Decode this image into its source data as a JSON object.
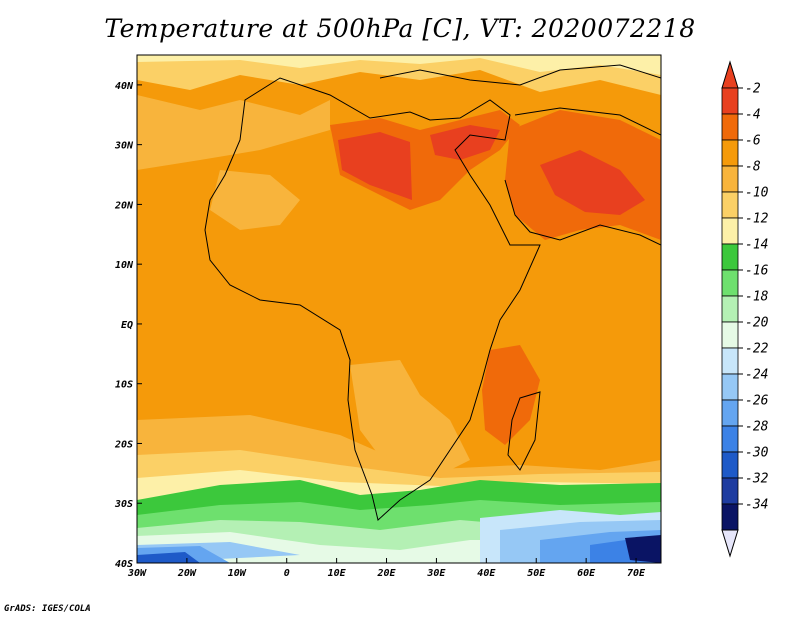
{
  "title": "Temperature at 500hPa [C], VT: 2020072218",
  "credit": "GrADS: IGES/COLA",
  "map": {
    "lon_ticks": [
      "30W",
      "20W",
      "10W",
      "0",
      "10E",
      "20E",
      "30E",
      "40E",
      "50E",
      "60E",
      "70E"
    ],
    "lat_ticks": [
      "40N",
      "30N",
      "20N",
      "10N",
      "EQ",
      "10S",
      "20S",
      "30S",
      "40S"
    ]
  },
  "colorbar": {
    "levels": [
      "-2",
      "-4",
      "-6",
      "-8",
      "-10",
      "-12",
      "-14",
      "-16",
      "-18",
      "-20",
      "-22",
      "-24",
      "-26",
      "-28",
      "-30",
      "-32",
      "-34"
    ],
    "colors": [
      "#e8401f",
      "#f06a0a",
      "#f59a0a",
      "#f8b43c",
      "#fbd066",
      "#fdf0a8",
      "#3cc83c",
      "#6ee06e",
      "#b4f0b4",
      "#e6fae6",
      "#c8e6fa",
      "#96c8f5",
      "#64a5f0",
      "#3c82e6",
      "#1e5ac8",
      "#1e3ca0",
      "#0a1464"
    ],
    "top_arrow_color": "#e8401f",
    "bottom_arrow_color": "#e6e6fa"
  }
}
